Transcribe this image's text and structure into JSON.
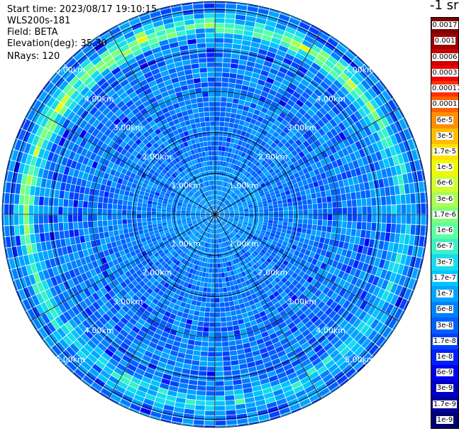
{
  "info": {
    "start_time": "Start time: 2023/08/17 19:10:15",
    "instrument": "WLS200s-181",
    "field": "Field: BETA",
    "elevation": "Elevation(deg): 35.30",
    "nrays": "NRays: 120"
  },
  "colorbar": {
    "unit": "-1 sr",
    "labels": [
      "0.0017",
      "0.001",
      "0.0006",
      "0.0003",
      "0.00017",
      "0.0001",
      "6e-5",
      "3e-5",
      "1.7e-5",
      "1e-5",
      "6e-6",
      "3e-6",
      "1.7e-6",
      "1e-6",
      "6e-7",
      "3e-7",
      "1.7e-7",
      "1e-7",
      "6e-8",
      "3e-8",
      "1.7e-8",
      "1e-8",
      "6e-9",
      "3e-9",
      "1.7e-9",
      "1e-9"
    ],
    "colors": [
      "#7f0000",
      "#9f0000",
      "#c80000",
      "#ee0000",
      "#ff3000",
      "#ff6000",
      "#ff8f00",
      "#ffbd00",
      "#ffe000",
      "#f0f800",
      "#d0ff2a",
      "#a8ff50",
      "#80ff78",
      "#5effa0",
      "#3cf2c4",
      "#18dcec",
      "#00c4ff",
      "#00a4ff",
      "#0080ff",
      "#0060ff",
      "#0040ff",
      "#0020ff",
      "#0000f0",
      "#0000c4",
      "#000098",
      "#00006e"
    ]
  },
  "rings": {
    "labels": [
      "1.00km",
      "2.00km",
      "3.00km",
      "4.00km",
      "5.00km"
    ]
  },
  "chart_data": {
    "type": "heatmap",
    "projection": "polar PPI",
    "field": "BETA",
    "rays": 120,
    "range_rings_km": [
      1,
      2,
      3,
      4,
      5
    ],
    "range_max_km": 5.2,
    "scale": "log",
    "color_min": 1e-09,
    "color_max": 0.0017,
    "high_backscatter_ring_km": 4.6
  }
}
